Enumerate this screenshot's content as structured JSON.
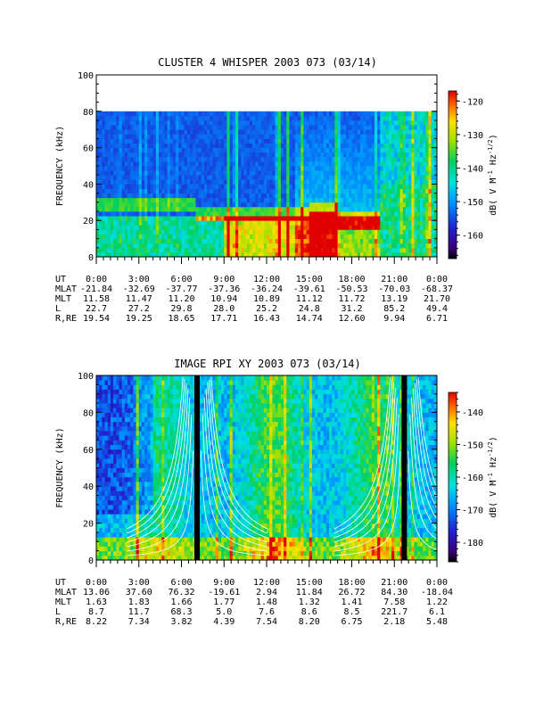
{
  "chart_data": [
    {
      "type": "heatmap",
      "title": "CLUSTER 4 WHISPER 2003 073 (03/14)",
      "ylabel": "FREQUENCY (kHz)",
      "ylim": [
        0,
        100
      ],
      "y_ticks": [
        "0",
        "20",
        "40",
        "60",
        "80",
        "100"
      ],
      "xlim_hours": [
        0,
        24
      ],
      "x_ticks": [
        "0:00",
        "3:00",
        "6:00",
        "9:00",
        "12:00",
        "15:00",
        "18:00",
        "21:00",
        "0:00"
      ],
      "data_max_khz": 80,
      "colorbar": {
        "label": "dB( V M⁻¹ Hz⁻¹ᐟ²)",
        "label_parts": [
          "dB( V M",
          "-1",
          " Hz",
          "-1/2",
          ")"
        ],
        "range": [
          -167,
          -117
        ],
        "ticks": [
          "-120",
          "-130",
          "-140",
          "-150",
          "-160"
        ]
      },
      "ephemeris": {
        "rows": [
          {
            "label": "UT",
            "values": [
              "0:00",
              "3:00",
              "6:00",
              "9:00",
              "12:00",
              "15:00",
              "18:00",
              "21:00",
              "0:00"
            ]
          },
          {
            "label": "MLAT",
            "values": [
              "-21.84",
              "-32.69",
              "-37.77",
              "-37.36",
              "-36.24",
              "-39.61",
              "-50.53",
              "-70.03",
              "-68.37"
            ]
          },
          {
            "label": "MLT",
            "values": [
              "11.58",
              "11.47",
              "11.20",
              "10.94",
              "10.89",
              "11.12",
              "11.72",
              "13.19",
              "21.70"
            ]
          },
          {
            "label": "L",
            "values": [
              "22.7",
              "27.2",
              "29.8",
              "28.0",
              "25.2",
              "24.8",
              "31.2",
              "85.2",
              "49.4"
            ]
          },
          {
            "label": "R,RE",
            "values": [
              "19.54",
              "19.25",
              "18.65",
              "17.71",
              "16.43",
              "14.74",
              "12.60",
              "9.94",
              "6.71"
            ]
          }
        ]
      }
    },
    {
      "type": "heatmap",
      "title": "IMAGE RPI XY 2003 073 (03/14)",
      "ylabel": "FREQUENCY (kHz)",
      "ylim": [
        0,
        100
      ],
      "y_ticks": [
        "0",
        "20",
        "40",
        "60",
        "80",
        "100"
      ],
      "xlim_hours": [
        0,
        24
      ],
      "x_ticks": [
        "0:00",
        "3:00",
        "6:00",
        "9:00",
        "12:00",
        "15:00",
        "18:00",
        "21:00",
        "0:00"
      ],
      "colorbar": {
        "label": "dB( V M⁻¹ Hz⁻¹ᐟ²)",
        "label_parts": [
          "dB( V M",
          "-1",
          " Hz",
          "-1/2",
          ")"
        ],
        "range": [
          -186,
          -134
        ],
        "ticks": [
          "-140",
          "-150",
          "-160",
          "-170",
          "-180"
        ]
      },
      "ephemeris": {
        "rows": [
          {
            "label": "UT",
            "values": [
              "0:00",
              "3:00",
              "6:00",
              "9:00",
              "12:00",
              "15:00",
              "18:00",
              "21:00",
              "0:00"
            ]
          },
          {
            "label": "MLAT",
            "values": [
              "13.06",
              "37.60",
              "76.32",
              "-19.61",
              "2.94",
              "11.84",
              "26.72",
              "84.30",
              "-18.04"
            ]
          },
          {
            "label": "MLT",
            "values": [
              "1.63",
              "1.83",
              "1.66",
              "1.77",
              "1.48",
              "1.32",
              "1.41",
              "7.58",
              "1.22"
            ]
          },
          {
            "label": "L",
            "values": [
              "8.7",
              "11.7",
              "68.3",
              "5.0",
              "7.6",
              "8.6",
              "8.5",
              "221.7",
              "6.1"
            ]
          },
          {
            "label": "R,RE",
            "values": [
              "8.22",
              "7.34",
              "3.82",
              "4.39",
              "7.54",
              "8.20",
              "6.75",
              "2.18",
              "5.48"
            ]
          }
        ]
      }
    }
  ]
}
